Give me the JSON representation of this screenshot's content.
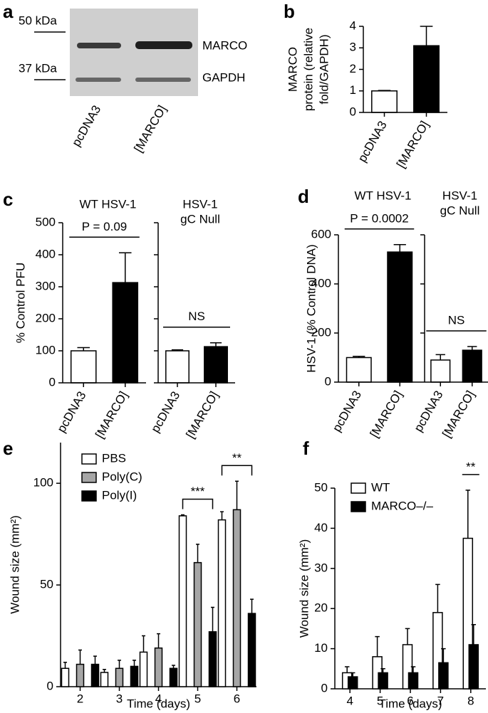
{
  "chart_data": [
    {
      "panel": "a",
      "type": "blot",
      "markers": [
        "50 kDa",
        "37 kDa"
      ],
      "bands": [
        "MARCO",
        "GAPDH"
      ],
      "categories": [
        "pcDNA3",
        "[MARCO]"
      ]
    },
    {
      "panel": "b",
      "type": "bar",
      "ylabel": [
        "MARCO",
        "protein (relative",
        "fold/GAPDH)"
      ],
      "categories": [
        "pcDNA3",
        "[MARCO]"
      ],
      "values": [
        1,
        3.1
      ],
      "errors": [
        0.02,
        0.9
      ],
      "colors": [
        "#ffffff",
        "#000000"
      ],
      "ylim": [
        0,
        4
      ],
      "yticks": [
        0,
        1,
        2,
        3,
        4
      ]
    },
    {
      "panel": "c",
      "type": "bar",
      "ylabel": "% Control PFU",
      "colors": [
        "#ffffff",
        "#000000"
      ],
      "ylim": [
        0,
        500
      ],
      "yticks": [
        0,
        100,
        200,
        300,
        400,
        500
      ],
      "groups": [
        {
          "title": [
            "WT HSV-1"
          ],
          "categories": [
            "pcDNA3",
            "[MARCO]"
          ],
          "values": [
            100,
            313
          ],
          "errors": [
            10,
            93
          ],
          "annotation": "P = 0.09"
        },
        {
          "title": [
            "HSV-1",
            "gC Null"
          ],
          "categories": [
            "pcDNA3",
            "[MARCO]"
          ],
          "values": [
            100,
            113
          ],
          "errors": [
            3,
            12
          ],
          "annotation": "NS"
        }
      ]
    },
    {
      "panel": "d",
      "type": "bar",
      "ylabel": "HSV-1 (% Control DNA)",
      "colors": [
        "#ffffff",
        "#000000"
      ],
      "ylim": [
        0,
        600
      ],
      "yticks": [
        0,
        200,
        400,
        600
      ],
      "groups": [
        {
          "title": [
            "WT HSV-1"
          ],
          "categories": [
            "pcDNA3",
            "[MARCO]"
          ],
          "values": [
            100,
            530
          ],
          "errors": [
            5,
            30
          ],
          "annotation": "P = 0.0002"
        },
        {
          "title": [
            "HSV-1",
            "gC Null"
          ],
          "categories": [
            "pcDNA3",
            "[MARCO]"
          ],
          "values": [
            90,
            130
          ],
          "errors": [
            22,
            15
          ],
          "annotation": "NS"
        }
      ]
    },
    {
      "panel": "e",
      "type": "grouped_bar",
      "xlabel": "Time (days)",
      "ylabel": "Wound size (mm²)",
      "categories": [
        "2",
        "3",
        "4",
        "5",
        "6"
      ],
      "series": [
        {
          "name": "PBS",
          "color": "#ffffff",
          "values": [
            9,
            7,
            17,
            84,
            82
          ],
          "errors": [
            3,
            1.5,
            8,
            0.5,
            4
          ]
        },
        {
          "name": "Poly(C)",
          "color": "#a6a6a6",
          "values": [
            11,
            9,
            19,
            61,
            87
          ],
          "errors": [
            7,
            4,
            7,
            9,
            14
          ]
        },
        {
          "name": "Poly(I)",
          "color": "#000000",
          "values": [
            11,
            10,
            9,
            27,
            36
          ],
          "errors": [
            4,
            3,
            1.5,
            12,
            7
          ]
        }
      ],
      "significance": [
        null,
        null,
        null,
        "***",
        "**"
      ],
      "ylim": [
        0,
        120
      ],
      "yticks": [
        0,
        50,
        100
      ]
    },
    {
      "panel": "f",
      "type": "grouped_bar",
      "xlabel": "Time (days)",
      "ylabel": "Wound size (mm²)",
      "categories": [
        "4",
        "5",
        "6",
        "7",
        "8"
      ],
      "series": [
        {
          "name": "WT",
          "color": "#ffffff",
          "values": [
            4,
            8,
            11,
            19,
            37.5
          ],
          "errors": [
            1.5,
            5,
            4,
            7,
            12
          ]
        },
        {
          "name": "MARCO–/–",
          "color": "#000000",
          "values": [
            3,
            4,
            4,
            6.5,
            11
          ],
          "errors": [
            1,
            1,
            1.5,
            3.5,
            5
          ]
        }
      ],
      "significance": [
        null,
        null,
        null,
        null,
        "**"
      ],
      "ylim": [
        0,
        50
      ],
      "yticks": [
        0,
        10,
        20,
        30,
        40,
        50
      ]
    }
  ]
}
